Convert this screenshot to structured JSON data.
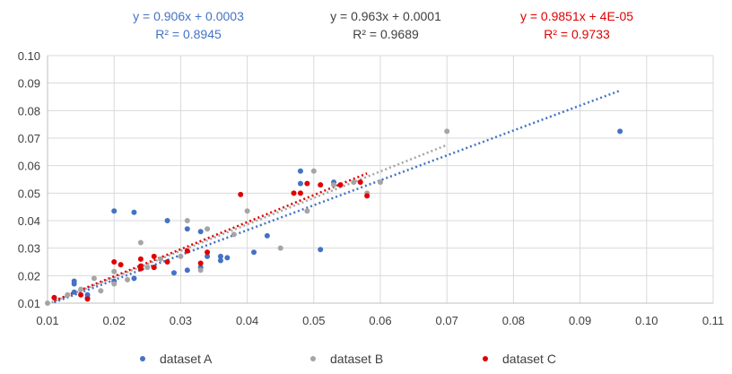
{
  "chart_data": {
    "type": "scatter",
    "title": "",
    "xlabel": "",
    "ylabel": "",
    "xlim": [
      0.01,
      0.11
    ],
    "ylim": [
      0.01,
      0.1
    ],
    "xticks": [
      "0.01",
      "0.02",
      "0.03",
      "0.04",
      "0.05",
      "0.06",
      "0.07",
      "0.08",
      "0.09",
      "0.10",
      "0.11"
    ],
    "yticks": [
      "0.01",
      "0.02",
      "0.03",
      "0.04",
      "0.05",
      "0.06",
      "0.07",
      "0.08",
      "0.09",
      "0.10"
    ],
    "grid": true,
    "legend_position": "bottom",
    "series": [
      {
        "name": "dataset A",
        "color": "#4472C4",
        "trendline": {
          "slope": 0.906,
          "intercept": 0.0003,
          "equation": "y = 0.906x + 0.0003",
          "r2": "R² = 0.8945"
        },
        "points": [
          [
            0.011,
            0.012
          ],
          [
            0.014,
            0.014
          ],
          [
            0.014,
            0.017
          ],
          [
            0.014,
            0.018
          ],
          [
            0.016,
            0.012
          ],
          [
            0.016,
            0.013
          ],
          [
            0.02,
            0.018
          ],
          [
            0.02,
            0.0435
          ],
          [
            0.023,
            0.019
          ],
          [
            0.023,
            0.043
          ],
          [
            0.028,
            0.04
          ],
          [
            0.026,
            0.023
          ],
          [
            0.029,
            0.021
          ],
          [
            0.031,
            0.022
          ],
          [
            0.031,
            0.037
          ],
          [
            0.033,
            0.036
          ],
          [
            0.033,
            0.023
          ],
          [
            0.034,
            0.027
          ],
          [
            0.036,
            0.027
          ],
          [
            0.036,
            0.0255
          ],
          [
            0.037,
            0.0265
          ],
          [
            0.041,
            0.0285
          ],
          [
            0.043,
            0.0345
          ],
          [
            0.048,
            0.0535
          ],
          [
            0.048,
            0.058
          ],
          [
            0.051,
            0.0295
          ],
          [
            0.053,
            0.054
          ],
          [
            0.096,
            0.0725
          ]
        ]
      },
      {
        "name": "dataset B",
        "color": "#A5A5A5",
        "trendline": {
          "slope": 0.963,
          "intercept": 0.0001,
          "equation": "y = 0.963x + 0.0001",
          "r2": "R² = 0.9689"
        },
        "points": [
          [
            0.01,
            0.01
          ],
          [
            0.013,
            0.013
          ],
          [
            0.015,
            0.015
          ],
          [
            0.017,
            0.019
          ],
          [
            0.018,
            0.0145
          ],
          [
            0.02,
            0.017
          ],
          [
            0.02,
            0.0215
          ],
          [
            0.022,
            0.0185
          ],
          [
            0.024,
            0.032
          ],
          [
            0.025,
            0.023
          ],
          [
            0.027,
            0.026
          ],
          [
            0.03,
            0.027
          ],
          [
            0.031,
            0.04
          ],
          [
            0.033,
            0.022
          ],
          [
            0.034,
            0.037
          ],
          [
            0.038,
            0.035
          ],
          [
            0.04,
            0.0435
          ],
          [
            0.045,
            0.03
          ],
          [
            0.049,
            0.0435
          ],
          [
            0.05,
            0.058
          ],
          [
            0.053,
            0.053
          ],
          [
            0.056,
            0.054
          ],
          [
            0.058,
            0.05
          ],
          [
            0.06,
            0.054
          ],
          [
            0.07,
            0.0725
          ]
        ]
      },
      {
        "name": "dataset C",
        "color": "#E00000",
        "trendline": {
          "slope": 0.9851,
          "intercept": 4e-05,
          "equation": "y = 0.9851x + 4E-05",
          "r2": "R² = 0.9733"
        },
        "points": [
          [
            0.011,
            0.012
          ],
          [
            0.015,
            0.013
          ],
          [
            0.016,
            0.0115
          ],
          [
            0.02,
            0.025
          ],
          [
            0.021,
            0.024
          ],
          [
            0.024,
            0.0235
          ],
          [
            0.024,
            0.0225
          ],
          [
            0.024,
            0.026
          ],
          [
            0.026,
            0.023
          ],
          [
            0.026,
            0.027
          ],
          [
            0.028,
            0.025
          ],
          [
            0.031,
            0.029
          ],
          [
            0.033,
            0.0245
          ],
          [
            0.034,
            0.0285
          ],
          [
            0.039,
            0.0495
          ],
          [
            0.047,
            0.05
          ],
          [
            0.048,
            0.05
          ],
          [
            0.049,
            0.0535
          ],
          [
            0.051,
            0.053
          ],
          [
            0.054,
            0.053
          ],
          [
            0.057,
            0.054
          ],
          [
            0.058,
            0.049
          ]
        ]
      }
    ]
  }
}
